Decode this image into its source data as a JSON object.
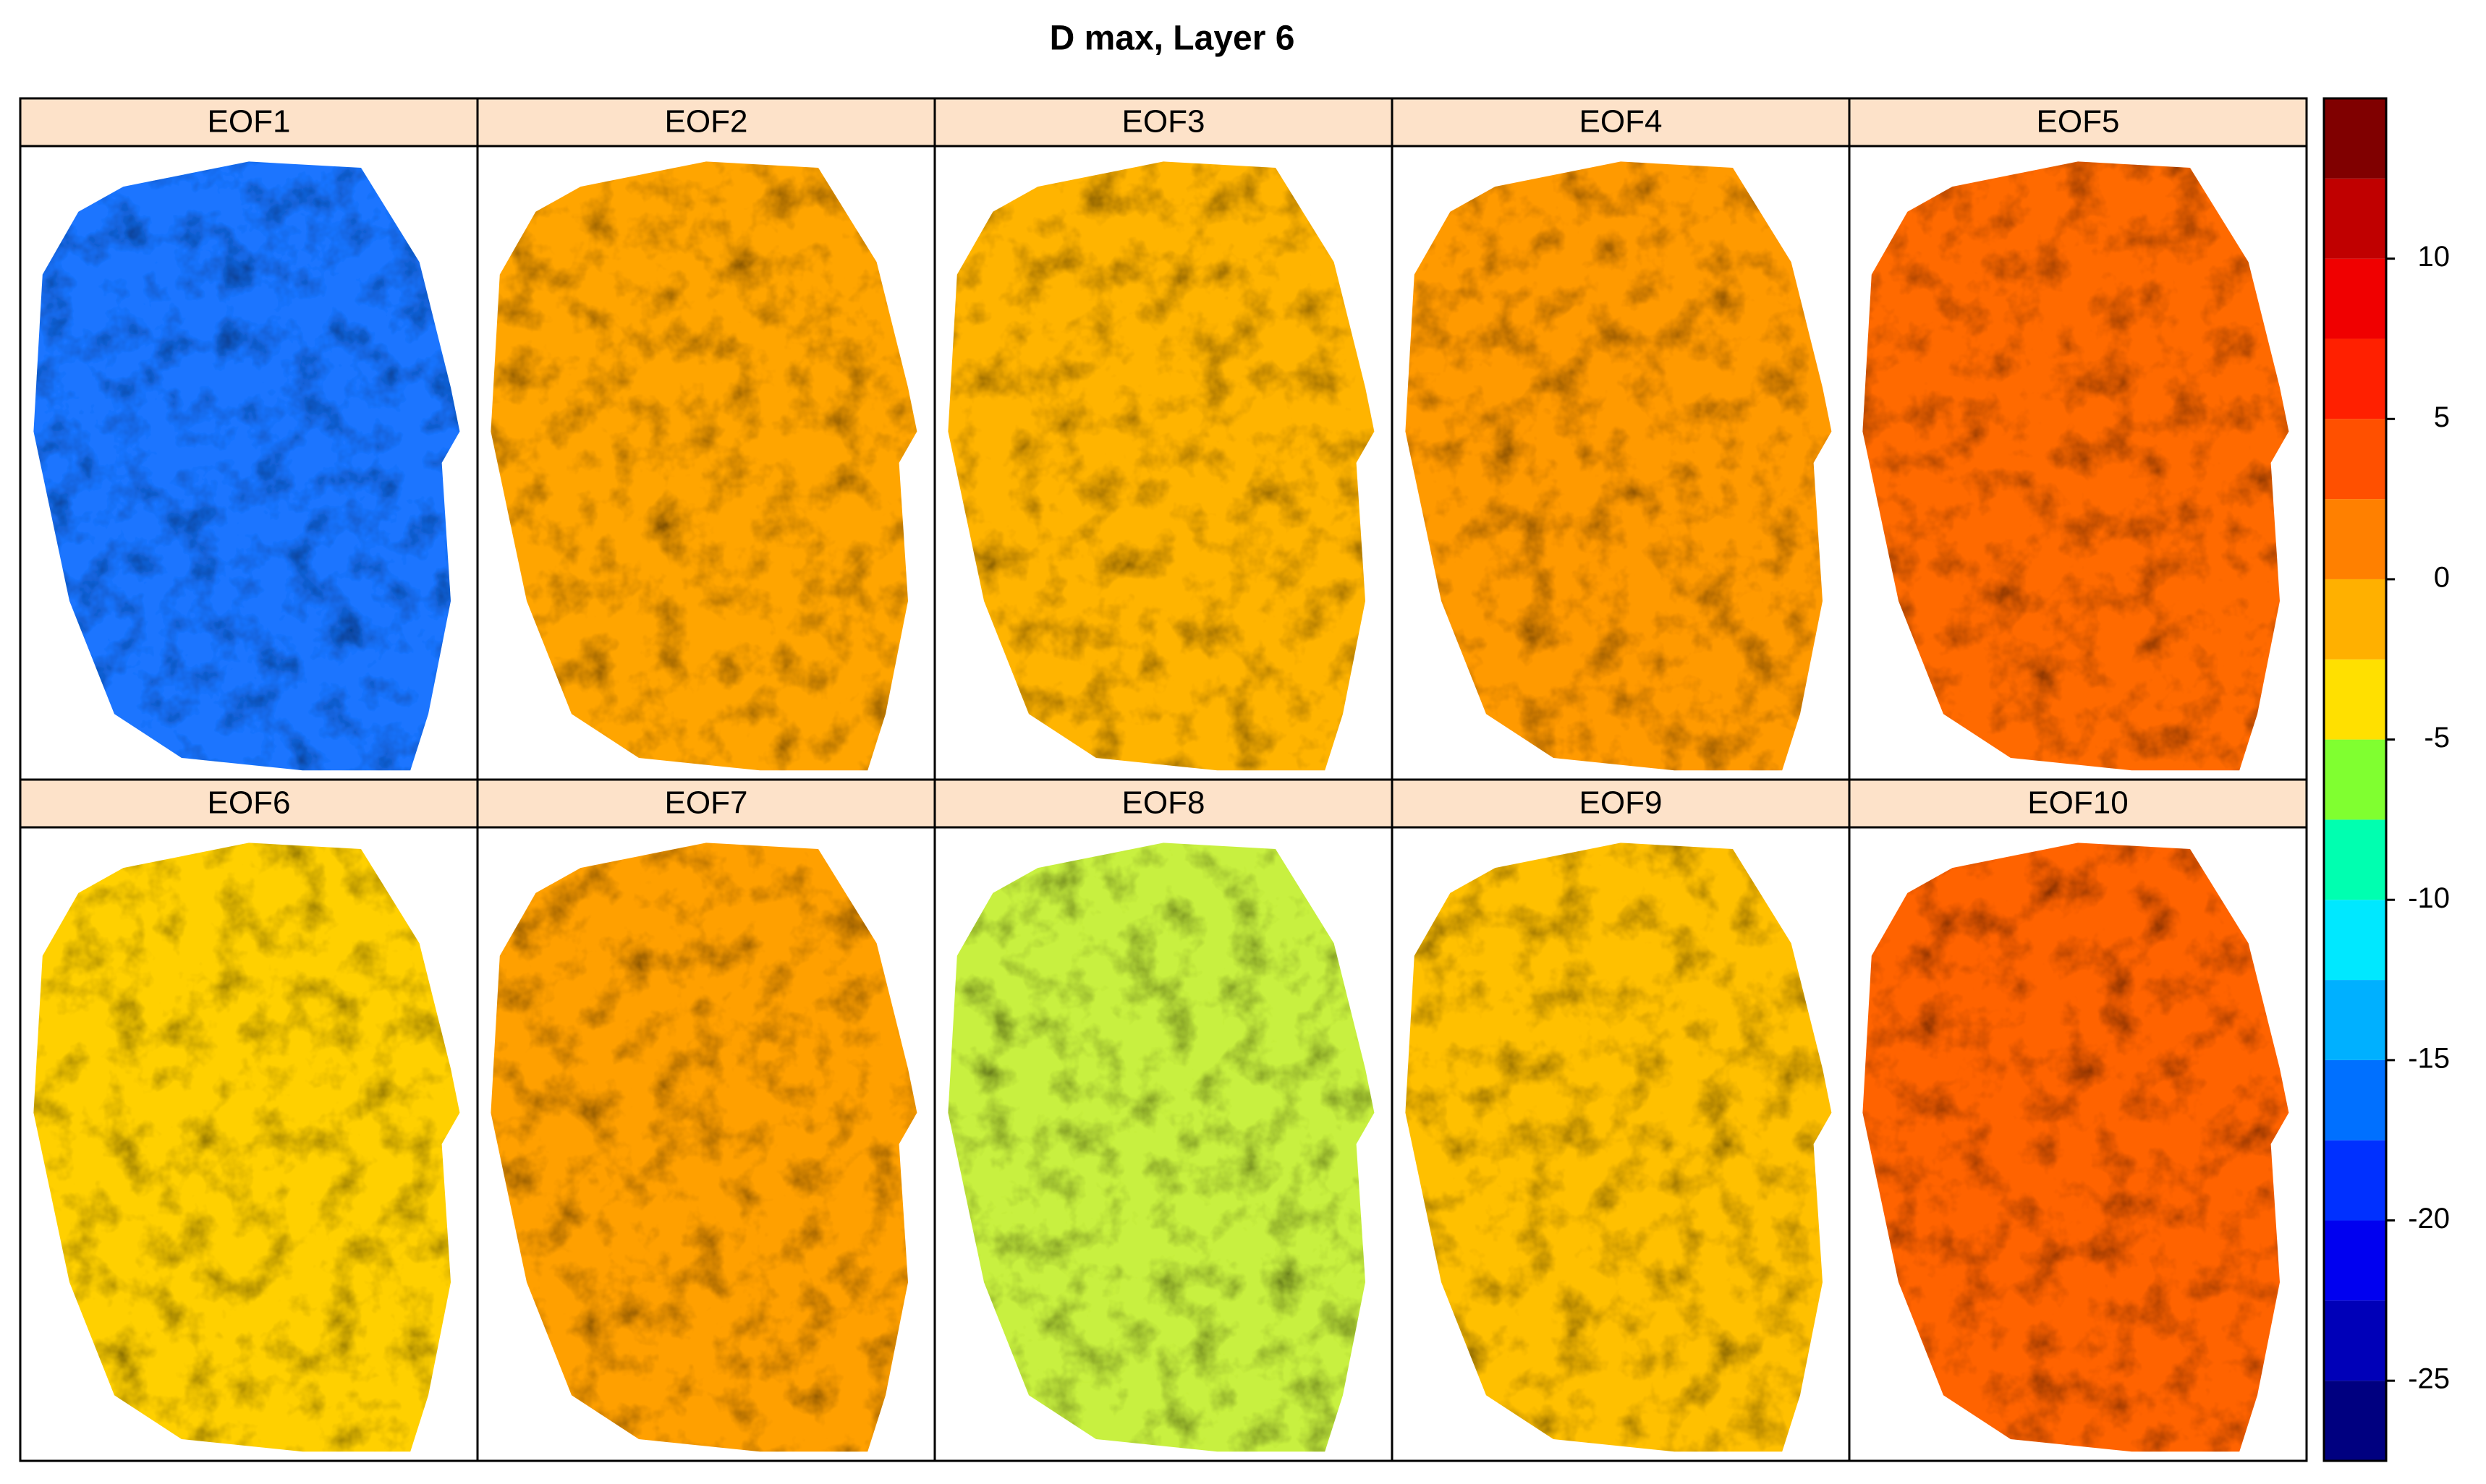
{
  "chart_data": {
    "type": "levelplot",
    "title": "D max, Layer 6",
    "panels": [
      {
        "name": "EOF1",
        "color": "#1e74ff"
      },
      {
        "name": "EOF2",
        "color": "#ffa500"
      },
      {
        "name": "EOF3",
        "color": "#ffb400"
      },
      {
        "name": "EOF4",
        "color": "#ff9a00"
      },
      {
        "name": "EOF5",
        "color": "#ff6a00"
      },
      {
        "name": "EOF6",
        "color": "#ffd000"
      },
      {
        "name": "EOF7",
        "color": "#ffa000"
      },
      {
        "name": "EOF8",
        "color": "#c8f040"
      },
      {
        "name": "EOF9",
        "color": "#ffc000"
      },
      {
        "name": "EOF10",
        "color": "#ff6400"
      }
    ],
    "colorkey": {
      "breaks": [
        -27.5,
        -25,
        -22.5,
        -20,
        -17.5,
        -15,
        -12.5,
        -10,
        -7.5,
        -5,
        -2.5,
        0,
        2.5,
        5,
        7.5,
        10,
        12.5,
        15
      ],
      "colors": [
        "#000080",
        "#0000b8",
        "#0000f0",
        "#0030ff",
        "#0070ff",
        "#00b0ff",
        "#00e8ff",
        "#00ffb0",
        "#80ff30",
        "#ffe000",
        "#ffb000",
        "#ff8000",
        "#ff5000",
        "#ff2000",
        "#f00000",
        "#c00000",
        "#800000"
      ],
      "zlim": [
        -27.5,
        15
      ],
      "ticks": [
        -25,
        -20,
        -15,
        -10,
        -5,
        0,
        5,
        10
      ]
    }
  }
}
